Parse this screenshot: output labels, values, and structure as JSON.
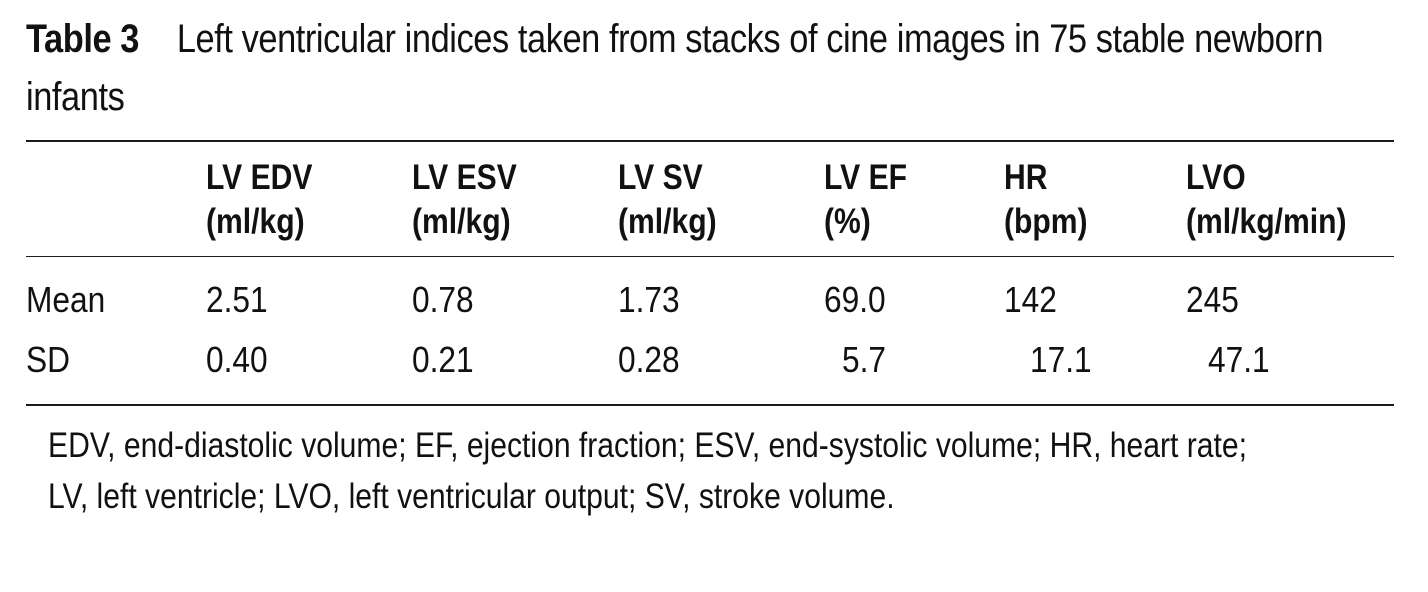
{
  "caption": {
    "label": "Table 3",
    "text": "Left ventricular indices taken from stacks of cine images in 75 stable newborn infants"
  },
  "table": {
    "headers": [
      {
        "line1": "",
        "line2": ""
      },
      {
        "line1": "LV EDV",
        "line2": "(ml/kg)"
      },
      {
        "line1": "LV ESV",
        "line2": "(ml/kg)"
      },
      {
        "line1": "LV SV",
        "line2": "(ml/kg)"
      },
      {
        "line1": "LV EF",
        "line2": "(%)"
      },
      {
        "line1": "HR",
        "line2": "(bpm)"
      },
      {
        "line1": "LVO",
        "line2": "(ml/kg/min)"
      }
    ],
    "rows": [
      [
        "Mean",
        "2.51",
        "0.78",
        "1.73",
        "69.0",
        "142",
        "245"
      ],
      [
        "SD",
        "0.40",
        "0.21",
        "0.28",
        "5.7",
        "17.1",
        "47.1"
      ]
    ]
  },
  "footnote": "EDV, end-diastolic volume; EF, ejection fraction; ESV, end-systolic volume; HR, heart rate; LV, left ventricle; LVO, left ventricular output; SV, stroke volume."
}
